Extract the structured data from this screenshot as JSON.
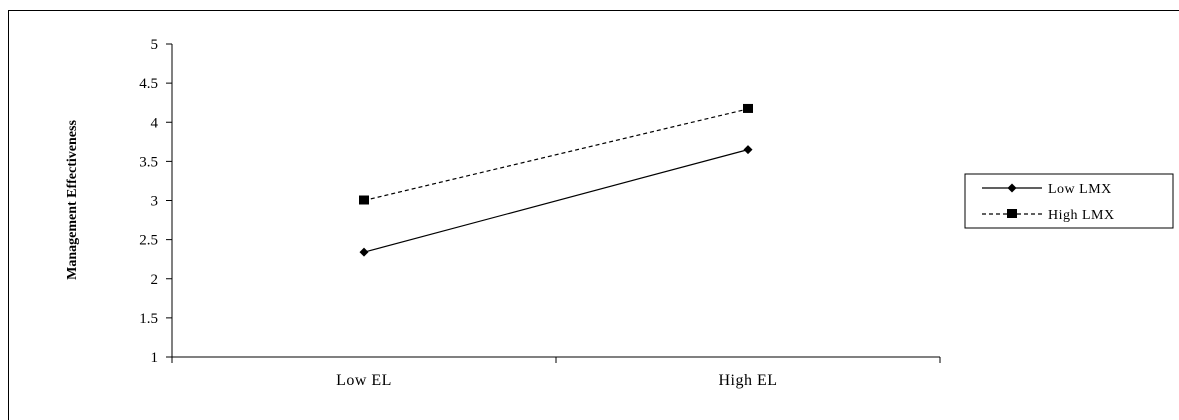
{
  "chart_data": {
    "type": "line",
    "title": "",
    "xlabel": "",
    "ylabel": "Management Effectiveness",
    "categories": [
      "Low EL",
      "High EL"
    ],
    "ylim": [
      1,
      5
    ],
    "yticks": [
      "1",
      "1.5",
      "2",
      "2.5",
      "3",
      "3.5",
      "4",
      "4.5",
      "5"
    ],
    "grid": false,
    "legend_position": "right",
    "series": [
      {
        "name": "Low LMX",
        "values": [
          2.34,
          3.65
        ],
        "line_style": "solid",
        "marker": "diamond",
        "color": "#000000"
      },
      {
        "name": "High LMX",
        "values": [
          3.0,
          4.17
        ],
        "line_style": "dashed",
        "marker": "square",
        "color": "#000000"
      }
    ]
  }
}
